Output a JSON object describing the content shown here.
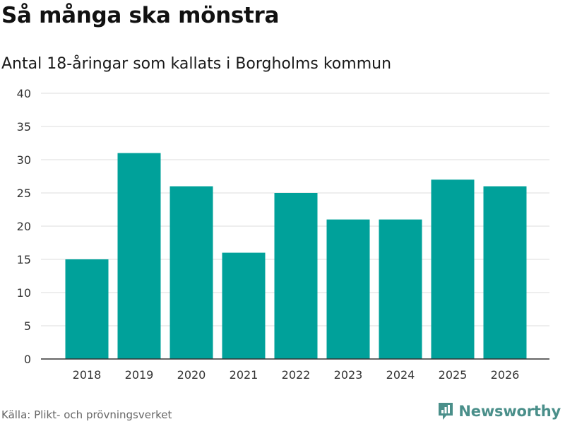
{
  "title": "Så många ska mönstra",
  "subtitle": "Antal 18-åringar som kallats i Borgholms kommun",
  "source": "Källa: Plikt- och prövningsverket",
  "brand": {
    "name": "Newsworthy",
    "icon": "newsworthy-logo-icon",
    "color": "#4a8f8a"
  },
  "colors": {
    "bar": "#00a19a",
    "grid": "#dddddd",
    "axis": "#333333"
  },
  "chart_data": {
    "type": "bar",
    "title": "Så många ska mönstra",
    "subtitle": "Antal 18-åringar som kallats i Borgholms kommun",
    "xlabel": "",
    "ylabel": "",
    "categories": [
      "2018",
      "2019",
      "2020",
      "2021",
      "2022",
      "2023",
      "2024",
      "2025",
      "2026"
    ],
    "values": [
      15,
      31,
      26,
      16,
      25,
      21,
      21,
      27,
      26
    ],
    "ylim": [
      0,
      40
    ],
    "yticks": [
      0,
      5,
      10,
      15,
      20,
      25,
      30,
      35,
      40
    ],
    "grid": true,
    "legend": "none"
  }
}
